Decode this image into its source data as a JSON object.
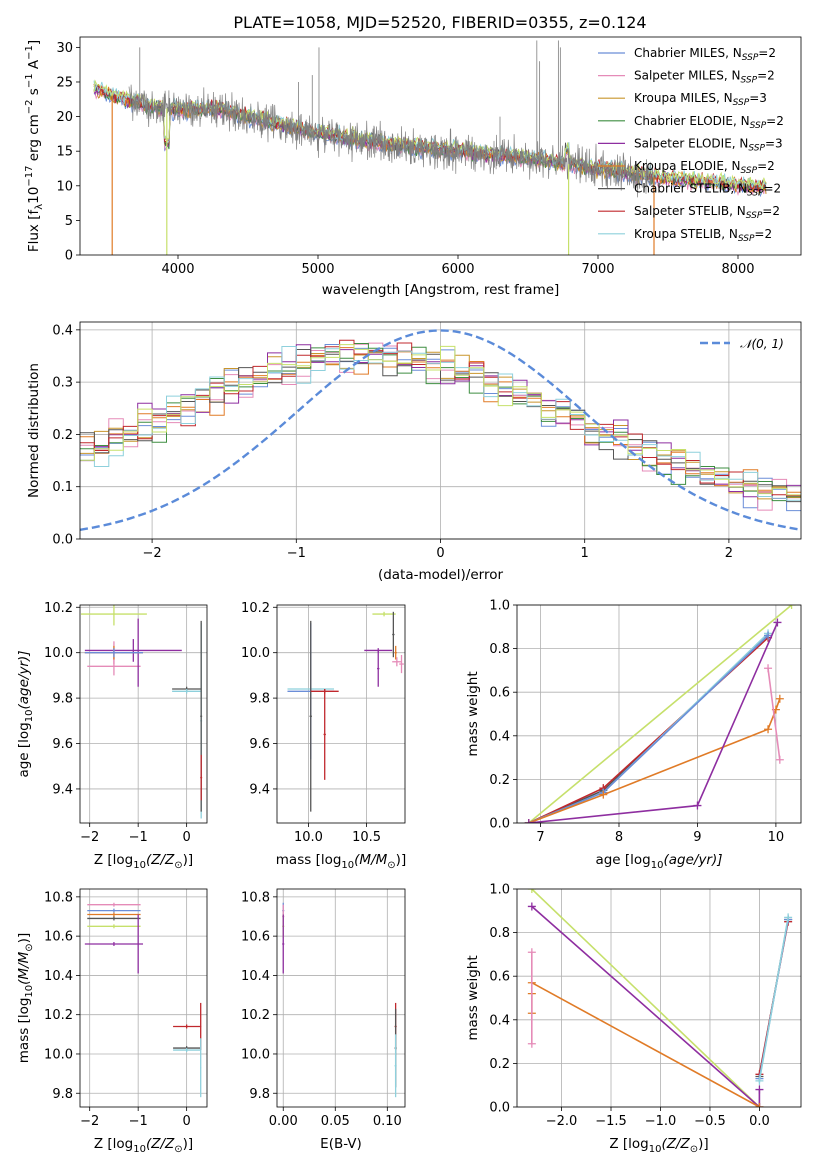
{
  "figure": {
    "title": "PLATE=1058, MJD=52520, FIBERID=0355, z=0.124"
  },
  "colors": {
    "Chabrier MILES": "#6b8ed8",
    "Salpeter MILES": "#e58bb8",
    "Kroupa MILES": "#c9952c",
    "Chabrier ELODIE": "#3e8e41",
    "Salpeter ELODIE": "#8e2ea0",
    "Kroupa ELODIE": "#e07b27",
    "Chabrier STELIB": "#555555",
    "Salpeter STELIB": "#c0282d",
    "Kroupa STELIB": "#8ed0dc",
    "data": "#7f7f7f",
    "lime": "#c6e06b",
    "normal": "#5b8bd9"
  },
  "chart_data": [
    {
      "id": "spectrum",
      "type": "line",
      "xlabel": "wavelength [Angstrom, rest frame]",
      "ylabel_main": "Flux [f",
      "ylabel_sub": "λ",
      "ylabel_rest": "10",
      "ylabel_exp1": "−17",
      "ylabel_rest2": " erg cm",
      "ylabel_exp2": "−2",
      "ylabel_rest3": " s",
      "ylabel_exp3": "−1",
      "ylabel_rest4": " A",
      "ylabel_exp4": "−1",
      "ylabel_end": "]",
      "xlim": [
        3300,
        8450
      ],
      "ylim": [
        0,
        31.5
      ],
      "xticks": [
        4000,
        5000,
        6000,
        7000,
        8000
      ],
      "yticks": [
        0,
        5,
        10,
        15,
        20,
        25,
        30
      ],
      "legend_position": "top-right",
      "legend": [
        {
          "label": "Chabrier MILES, N",
          "sub": "SSP",
          "val": "=2",
          "color": "#6b8ed8"
        },
        {
          "label": "Salpeter MILES, N",
          "sub": "SSP",
          "val": "=2",
          "color": "#e58bb8"
        },
        {
          "label": "Kroupa MILES, N",
          "sub": "SSP",
          "val": "=3",
          "color": "#c9952c"
        },
        {
          "label": "Chabrier ELODIE, N",
          "sub": "SSP",
          "val": "=2",
          "color": "#3e8e41"
        },
        {
          "label": "Salpeter ELODIE, N",
          "sub": "SSP",
          "val": "=3",
          "color": "#8e2ea0"
        },
        {
          "label": "Kroupa ELODIE, N",
          "sub": "SSP",
          "val": "=2",
          "color": "#e07b27"
        },
        {
          "label": "Chabrier STELIB, N",
          "sub": "SSP",
          "val": "=2",
          "color": "#555555"
        },
        {
          "label": "Salpeter STELIB, N",
          "sub": "SSP",
          "val": "=2",
          "color": "#c0282d"
        },
        {
          "label": "Kroupa STELIB, N",
          "sub": "SSP",
          "val": "=2",
          "color": "#8ed0dc"
        }
      ],
      "continuum": [
        [
          3400,
          24
        ],
        [
          3600,
          22.5
        ],
        [
          3800,
          21.5
        ],
        [
          4000,
          21
        ],
        [
          4300,
          21
        ],
        [
          4600,
          19.5
        ],
        [
          5000,
          17.5
        ],
        [
          5500,
          16
        ],
        [
          6000,
          15
        ],
        [
          6500,
          14
        ],
        [
          7000,
          12.5
        ],
        [
          7500,
          11
        ],
        [
          8000,
          10
        ],
        [
          8200,
          9.8
        ]
      ],
      "data_range": [
        3650,
        7400
      ],
      "model_range": [
        3400,
        8200
      ],
      "emission_lines": [
        [
          3727,
          30
        ],
        [
          4861,
          25
        ],
        [
          4959,
          26
        ],
        [
          5007,
          30
        ],
        [
          6300,
          20
        ],
        [
          6563,
          31
        ],
        [
          6583,
          28
        ],
        [
          6717,
          31
        ],
        [
          6731,
          30
        ]
      ],
      "drops": [
        [
          3530,
          "#e07b27"
        ],
        [
          3920,
          "#c6e06b"
        ],
        [
          6790,
          "#c6e06b"
        ],
        [
          7400,
          "#e07b27"
        ]
      ]
    },
    {
      "id": "residuals",
      "type": "line",
      "xlabel": "(data-model)/error",
      "ylabel": "Normed distribution",
      "xlim": [
        -2.5,
        2.5
      ],
      "ylim": [
        0,
        0.415
      ],
      "xticks": [
        -2,
        -1,
        0,
        1,
        2
      ],
      "yticks": [
        0.0,
        0.1,
        0.2,
        0.3,
        0.4
      ],
      "legend_label": "𝒩(0, 1)",
      "legend_position": "top-right",
      "bin_width": 0.1
    },
    {
      "id": "age_Z",
      "type": "scatter",
      "xlabel": "Z [log",
      "xlabel_sub": "10",
      "xlabel_rest": "(Z/Z",
      "xlabel_sub2": "⊙",
      "xlabel_end": ")]",
      "ylabel": "age  [log",
      "ylabel_sub": "10",
      "ylabel_rest": "(age/yr)]",
      "xlim": [
        -2.2,
        0.42
      ],
      "ylim": [
        9.25,
        10.21
      ],
      "xticks": [
        -2,
        -1,
        0
      ],
      "yticks": [
        9.4,
        9.6,
        9.8,
        10.0,
        10.2
      ],
      "points": [
        {
          "x": -1.5,
          "y": 10.17,
          "xe": 0.68,
          "ye": 0.05,
          "c": "#c6e06b"
        },
        {
          "x": -1.5,
          "y": 10.0,
          "xe": 0.6,
          "ye": 0.05,
          "c": "#e58bb8"
        },
        {
          "x": -1.5,
          "y": 9.94,
          "xe": 0.55,
          "ye": 0.04,
          "c": "#e58bb8"
        },
        {
          "x": -1.1,
          "y": 10.01,
          "xe": 1.0,
          "ye": 0.05,
          "c": "#8e2ea0"
        },
        {
          "x": -1.0,
          "y": 10.0,
          "xe": 0.05,
          "ye": 0.15,
          "c": "#8e2ea0"
        },
        {
          "x": -1.5,
          "y": 10.0,
          "xe": 0.6,
          "ye": 0.03,
          "c": "#e07b27"
        },
        {
          "x": -1.5,
          "y": 10.0,
          "xe": 0.6,
          "ye": 0.02,
          "c": "#6b8ed8"
        },
        {
          "x": 0.0,
          "y": 9.84,
          "xe": 0.3,
          "ye": 0.01,
          "c": "#555555"
        },
        {
          "x": 0.0,
          "y": 9.83,
          "xe": 0.3,
          "ye": 0.01,
          "c": "#8ed0dc"
        },
        {
          "x": 0.3,
          "y": 9.7,
          "xe": 0.02,
          "ye": 0.43,
          "c": "#8ed0dc"
        },
        {
          "x": 0.3,
          "y": 9.72,
          "xe": 0.02,
          "ye": 0.42,
          "c": "#555555"
        },
        {
          "x": 0.3,
          "y": 9.45,
          "xe": 0.02,
          "ye": 0.1,
          "c": "#c0282d"
        }
      ]
    },
    {
      "id": "age_mass",
      "type": "scatter",
      "xlabel": "mass [log",
      "xlabel_sub": "10",
      "xlabel_rest": "(M/M",
      "xlabel_sub2": "⊙",
      "xlabel_end": ")]",
      "xlim": [
        9.73,
        10.83
      ],
      "ylim": [
        9.25,
        10.21
      ],
      "xticks": [
        10.0,
        10.5
      ],
      "yticks": [
        9.4,
        9.6,
        9.8,
        10.0,
        10.2
      ],
      "points": [
        {
          "x": 10.02,
          "y": 9.84,
          "xe": 0.2,
          "ye": 0.01,
          "c": "#8ed0dc"
        },
        {
          "x": 10.02,
          "y": 9.83,
          "xe": 0.2,
          "ye": 0.3,
          "c": "#6b8ed8"
        },
        {
          "x": 10.02,
          "y": 9.72,
          "xe": 0.01,
          "ye": 0.42,
          "c": "#555555"
        },
        {
          "x": 10.14,
          "y": 9.83,
          "xe": 0.12,
          "ye": 0.01,
          "c": "#c0282d"
        },
        {
          "x": 10.14,
          "y": 9.64,
          "xe": 0.01,
          "ye": 0.2,
          "c": "#c0282d"
        },
        {
          "x": 10.65,
          "y": 10.17,
          "xe": 0.1,
          "ye": 0.01,
          "c": "#c6e06b"
        },
        {
          "x": 10.73,
          "y": 10.08,
          "xe": 0.01,
          "ye": 0.1,
          "c": "#555555"
        },
        {
          "x": 10.6,
          "y": 10.01,
          "xe": 0.12,
          "ye": 0.01,
          "c": "#8e2ea0"
        },
        {
          "x": 10.6,
          "y": 9.93,
          "xe": 0.01,
          "ye": 0.08,
          "c": "#8e2ea0"
        },
        {
          "x": 10.75,
          "y": 10.0,
          "xe": 0.01,
          "ye": 0.03,
          "c": "#e07b27"
        },
        {
          "x": 10.76,
          "y": 9.96,
          "xe": 0.04,
          "ye": 0.02,
          "c": "#e58bb8"
        },
        {
          "x": 10.8,
          "y": 9.95,
          "xe": 0.02,
          "ye": 0.04,
          "c": "#e58bb8"
        }
      ]
    },
    {
      "id": "weight_age",
      "type": "line",
      "xlabel": "age  [log",
      "xlabel_sub": "10",
      "xlabel_rest": "(age/yr)]",
      "ylabel": "mass weight",
      "xlim": [
        6.7,
        10.32
      ],
      "ylim": [
        0,
        1.0
      ],
      "xticks": [
        7,
        8,
        9,
        10
      ],
      "yticks": [
        0.0,
        0.2,
        0.4,
        0.6,
        0.8,
        1.0
      ],
      "series": [
        {
          "c": "#c6e06b",
          "x": [
            6.85,
            10.2
          ],
          "y": [
            0.0,
            1.0
          ]
        },
        {
          "c": "#555555",
          "x": [
            6.85,
            7.8,
            9.9
          ],
          "y": [
            0.0,
            0.15,
            0.86
          ]
        },
        {
          "c": "#c0282d",
          "x": [
            6.85,
            7.8,
            9.9
          ],
          "y": [
            0.0,
            0.16,
            0.85
          ]
        },
        {
          "c": "#8ed0dc",
          "x": [
            6.85,
            7.8,
            9.9
          ],
          "y": [
            0.0,
            0.14,
            0.87
          ]
        },
        {
          "c": "#6b8ed8",
          "x": [
            6.85,
            7.8,
            9.9
          ],
          "y": [
            0.0,
            0.14,
            0.86
          ]
        },
        {
          "c": "#e07b27",
          "x": [
            6.85,
            7.8,
            9.9,
            10.0,
            10.05
          ],
          "y": [
            0.0,
            0.13,
            0.43,
            0.52,
            0.57
          ]
        },
        {
          "c": "#e58bb8",
          "x": [
            9.9,
            10.05
          ],
          "y": [
            0.71,
            0.29
          ]
        },
        {
          "c": "#8e2ea0",
          "x": [
            6.85,
            9.0,
            10.02
          ],
          "y": [
            0.0,
            0.08,
            0.92
          ]
        }
      ]
    },
    {
      "id": "mass_Z",
      "type": "scatter",
      "xlabel": "Z [log",
      "xlabel_sub": "10",
      "xlabel_rest": "(Z/Z",
      "xlabel_sub2": "⊙",
      "xlabel_end": ")]",
      "ylabel": "mass [log",
      "ylabel_sub": "10",
      "ylabel_rest": "(M/M",
      "ylabel_sub2": "⊙",
      "ylabel_end": ")]",
      "xlim": [
        -2.2,
        0.42
      ],
      "ylim": [
        9.73,
        10.84
      ],
      "xticks": [
        -2,
        -1,
        0
      ],
      "yticks": [
        9.8,
        10.0,
        10.2,
        10.4,
        10.6,
        10.8
      ],
      "points": [
        {
          "x": -1.5,
          "y": 10.76,
          "xe": 0.55,
          "ye": 0.01,
          "c": "#e58bb8"
        },
        {
          "x": -1.5,
          "y": 10.73,
          "xe": 0.55,
          "ye": 0.01,
          "c": "#6b8ed8"
        },
        {
          "x": -1.5,
          "y": 10.71,
          "xe": 0.55,
          "ye": 0.01,
          "c": "#e07b27"
        },
        {
          "x": -1.5,
          "y": 10.69,
          "xe": 0.55,
          "ye": 0.01,
          "c": "#555555"
        },
        {
          "x": -1.5,
          "y": 10.65,
          "xe": 0.55,
          "ye": 0.01,
          "c": "#c6e06b"
        },
        {
          "x": -1.5,
          "y": 10.56,
          "xe": 0.6,
          "ye": 0.01,
          "c": "#8e2ea0"
        },
        {
          "x": -1.0,
          "y": 10.56,
          "xe": 0.01,
          "ye": 0.15,
          "c": "#8e2ea0"
        },
        {
          "x": 0.0,
          "y": 10.14,
          "xe": 0.28,
          "ye": 0.01,
          "c": "#c0282d"
        },
        {
          "x": 0.29,
          "y": 10.14,
          "xe": 0.01,
          "ye": 0.12,
          "c": "#c0282d"
        },
        {
          "x": 0.0,
          "y": 10.03,
          "xe": 0.28,
          "ye": 0.01,
          "c": "#555555"
        },
        {
          "x": 0.0,
          "y": 10.02,
          "xe": 0.28,
          "ye": 0.01,
          "c": "#8ed0dc"
        },
        {
          "x": 0.29,
          "y": 9.93,
          "xe": 0.01,
          "ye": 0.15,
          "c": "#8ed0dc"
        }
      ]
    },
    {
      "id": "mass_EBV",
      "type": "scatter",
      "xlabel": "E(B-V)",
      "xlim": [
        -0.006,
        0.117
      ],
      "ylim": [
        9.73,
        10.84
      ],
      "xticks": [
        0.0,
        0.05,
        0.1
      ],
      "xticklabels": [
        "0.00",
        "0.05",
        "0.10"
      ],
      "yticks": [
        9.8,
        10.0,
        10.2,
        10.4,
        10.6,
        10.8
      ],
      "points": [
        {
          "x": 0.0,
          "y": 10.73,
          "xe": 0.001,
          "ye": 0.04,
          "c": "#6b8ed8"
        },
        {
          "x": 0.0,
          "y": 10.7,
          "xe": 0.001,
          "ye": 0.06,
          "c": "#e58bb8"
        },
        {
          "x": 0.0,
          "y": 10.65,
          "xe": 0.001,
          "ye": 0.06,
          "c": "#c6e06b"
        },
        {
          "x": 0.0,
          "y": 10.56,
          "xe": 0.001,
          "ye": 0.15,
          "c": "#8e2ea0"
        },
        {
          "x": 0.108,
          "y": 10.14,
          "xe": 0.001,
          "ye": 0.12,
          "c": "#c0282d"
        },
        {
          "x": 0.108,
          "y": 10.03,
          "xe": 0.001,
          "ye": 0.2,
          "c": "#555555"
        },
        {
          "x": 0.108,
          "y": 9.94,
          "xe": 0.001,
          "ye": 0.16,
          "c": "#8ed0dc"
        }
      ]
    },
    {
      "id": "weight_Z",
      "type": "line",
      "xlabel": "Z [log",
      "xlabel_sub": "10",
      "xlabel_rest": "(Z/Z",
      "xlabel_sub2": "⊙",
      "xlabel_end": ")]",
      "ylabel": "mass weight",
      "xlim": [
        -2.45,
        0.42
      ],
      "ylim": [
        0,
        1.0
      ],
      "xticks": [
        -2.0,
        -1.5,
        -1.0,
        -0.5,
        0.0
      ],
      "xticklabels": [
        "−2.0",
        "−1.5",
        "−1.0",
        "−0.5",
        "0.0"
      ],
      "yticks": [
        0.0,
        0.2,
        0.4,
        0.6,
        0.8,
        1.0
      ],
      "series": [
        {
          "c": "#c6e06b",
          "x": [
            -2.3,
            0.0
          ],
          "y": [
            1.0,
            0.0
          ]
        },
        {
          "c": "#8e2ea0",
          "x": [
            -2.3,
            0.0,
            0.0
          ],
          "y": [
            0.92,
            0.0,
            0.08
          ]
        },
        {
          "c": "#e07b27",
          "x": [
            -2.3,
            0.0
          ],
          "y": [
            0.57,
            0.0
          ]
        },
        {
          "c": "#e07b27",
          "x": [
            -2.3,
            -2.3
          ],
          "y": [
            0.43,
            0.52
          ]
        },
        {
          "c": "#e58bb8",
          "x": [
            -2.3,
            -2.3
          ],
          "y": [
            0.29,
            0.71
          ]
        },
        {
          "c": "#555555",
          "x": [
            0.0,
            0.29
          ],
          "y": [
            0.14,
            0.86
          ]
        },
        {
          "c": "#c0282d",
          "x": [
            0.0,
            0.29
          ],
          "y": [
            0.15,
            0.85
          ]
        },
        {
          "c": "#6b8ed8",
          "x": [
            0.0,
            0.29
          ],
          "y": [
            0.13,
            0.86
          ]
        },
        {
          "c": "#8ed0dc",
          "x": [
            0.0,
            0.29
          ],
          "y": [
            0.12,
            0.87
          ]
        }
      ]
    }
  ]
}
